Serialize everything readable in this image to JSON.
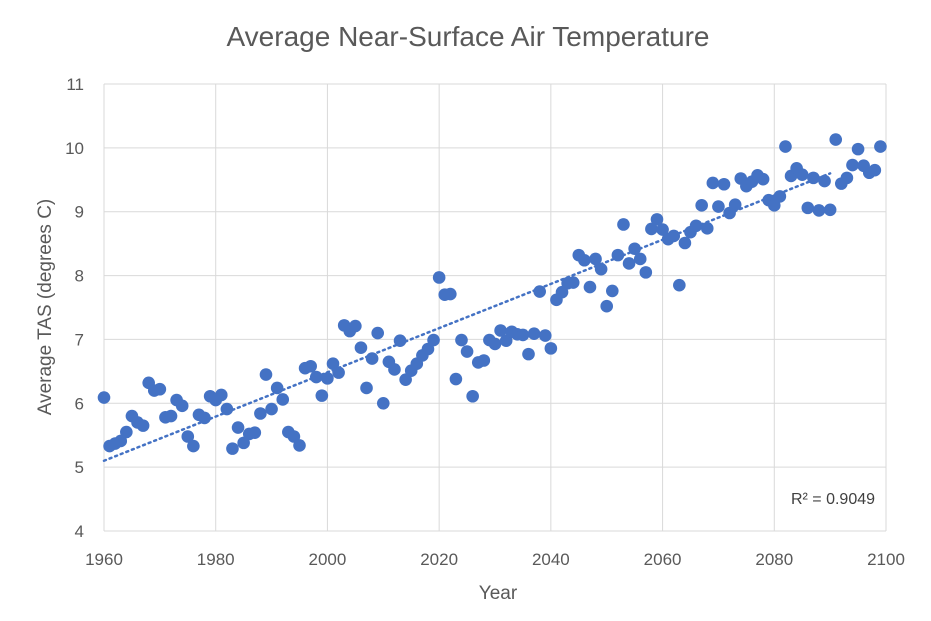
{
  "chart_data": {
    "type": "scatter",
    "title": "Average Near-Surface Air Temperature",
    "xlabel": "Year",
    "ylabel": "Average TAS (degrees C)",
    "xlim": [
      1960,
      2100
    ],
    "ylim": [
      4,
      11
    ],
    "x_ticks": [
      "1960",
      "1980",
      "2000",
      "2020",
      "2040",
      "2060",
      "2080",
      "2100"
    ],
    "y_ticks": [
      "4",
      "5",
      "6",
      "7",
      "8",
      "9",
      "10",
      "11"
    ],
    "grid": true,
    "legend": "none",
    "marker_color": "#4472C4",
    "trendline": {
      "type": "linear",
      "style": "dotted",
      "color": "#4472C4",
      "x_range": [
        1960,
        2090
      ],
      "y_range": [
        5.1,
        9.6
      ],
      "r2_label": "R² = 0.9049"
    },
    "points": [
      [
        1960,
        6.09
      ],
      [
        1961,
        5.33
      ],
      [
        1962,
        5.37
      ],
      [
        1963,
        5.41
      ],
      [
        1964,
        5.55
      ],
      [
        1965,
        5.8
      ],
      [
        1966,
        5.7
      ],
      [
        1967,
        5.65
      ],
      [
        1968,
        6.32
      ],
      [
        1969,
        6.2
      ],
      [
        1970,
        6.22
      ],
      [
        1971,
        5.78
      ],
      [
        1972,
        5.8
      ],
      [
        1973,
        6.05
      ],
      [
        1974,
        5.96
      ],
      [
        1975,
        5.48
      ],
      [
        1976,
        5.33
      ],
      [
        1977,
        5.82
      ],
      [
        1978,
        5.77
      ],
      [
        1979,
        6.11
      ],
      [
        1980,
        6.05
      ],
      [
        1981,
        6.13
      ],
      [
        1982,
        5.91
      ],
      [
        1983,
        5.29
      ],
      [
        1984,
        5.62
      ],
      [
        1985,
        5.38
      ],
      [
        1986,
        5.52
      ],
      [
        1987,
        5.54
      ],
      [
        1988,
        5.84
      ],
      [
        1989,
        6.45
      ],
      [
        1990,
        5.91
      ],
      [
        1991,
        6.24
      ],
      [
        1992,
        6.06
      ],
      [
        1993,
        5.55
      ],
      [
        1994,
        5.48
      ],
      [
        1995,
        5.34
      ],
      [
        1996,
        6.55
      ],
      [
        1997,
        6.58
      ],
      [
        1998,
        6.41
      ],
      [
        1999,
        6.12
      ],
      [
        2000,
        6.39
      ],
      [
        2001,
        6.62
      ],
      [
        2002,
        6.48
      ],
      [
        2003,
        7.22
      ],
      [
        2004,
        7.13
      ],
      [
        2005,
        7.21
      ],
      [
        2006,
        6.87
      ],
      [
        2007,
        6.24
      ],
      [
        2008,
        6.7
      ],
      [
        2009,
        7.1
      ],
      [
        2010,
        6.0
      ],
      [
        2011,
        6.65
      ],
      [
        2012,
        6.53
      ],
      [
        2013,
        6.98
      ],
      [
        2014,
        6.37
      ],
      [
        2015,
        6.51
      ],
      [
        2016,
        6.62
      ],
      [
        2017,
        6.75
      ],
      [
        2018,
        6.85
      ],
      [
        2019,
        6.99
      ],
      [
        2020,
        7.97
      ],
      [
        2021,
        7.7
      ],
      [
        2022,
        7.71
      ],
      [
        2023,
        6.38
      ],
      [
        2024,
        6.99
      ],
      [
        2025,
        6.81
      ],
      [
        2026,
        6.11
      ],
      [
        2027,
        6.64
      ],
      [
        2028,
        6.67
      ],
      [
        2029,
        6.99
      ],
      [
        2030,
        6.93
      ],
      [
        2031,
        7.14
      ],
      [
        2032,
        6.98
      ],
      [
        2033,
        7.12
      ],
      [
        2034,
        7.08
      ],
      [
        2035,
        7.07
      ],
      [
        2036,
        6.77
      ],
      [
        2037,
        7.09
      ],
      [
        2038,
        7.75
      ],
      [
        2039,
        7.06
      ],
      [
        2040,
        6.86
      ],
      [
        2041,
        7.62
      ],
      [
        2042,
        7.74
      ],
      [
        2043,
        7.88
      ],
      [
        2044,
        7.89
      ],
      [
        2045,
        8.32
      ],
      [
        2046,
        8.24
      ],
      [
        2047,
        7.82
      ],
      [
        2048,
        8.26
      ],
      [
        2049,
        8.1
      ],
      [
        2050,
        7.52
      ],
      [
        2051,
        7.76
      ],
      [
        2052,
        8.32
      ],
      [
        2053,
        8.8
      ],
      [
        2054,
        8.19
      ],
      [
        2055,
        8.42
      ],
      [
        2056,
        8.26
      ],
      [
        2057,
        8.05
      ],
      [
        2058,
        8.73
      ],
      [
        2059,
        8.88
      ],
      [
        2060,
        8.72
      ],
      [
        2061,
        8.57
      ],
      [
        2062,
        8.62
      ],
      [
        2063,
        7.85
      ],
      [
        2064,
        8.51
      ],
      [
        2065,
        8.68
      ],
      [
        2066,
        8.78
      ],
      [
        2067,
        9.1
      ],
      [
        2068,
        8.74
      ],
      [
        2069,
        9.45
      ],
      [
        2070,
        9.08
      ],
      [
        2071,
        9.43
      ],
      [
        2072,
        8.98
      ],
      [
        2073,
        9.11
      ],
      [
        2074,
        9.52
      ],
      [
        2075,
        9.4
      ],
      [
        2076,
        9.47
      ],
      [
        2077,
        9.57
      ],
      [
        2078,
        9.51
      ],
      [
        2079,
        9.18
      ],
      [
        2080,
        9.1
      ],
      [
        2081,
        9.24
      ],
      [
        2082,
        10.02
      ],
      [
        2083,
        9.56
      ],
      [
        2084,
        9.68
      ],
      [
        2085,
        9.58
      ],
      [
        2086,
        9.06
      ],
      [
        2087,
        9.53
      ],
      [
        2088,
        9.02
      ],
      [
        2089,
        9.48
      ],
      [
        2090,
        9.03
      ],
      [
        2091,
        10.13
      ],
      [
        2092,
        9.44
      ],
      [
        2093,
        9.53
      ],
      [
        2094,
        9.73
      ],
      [
        2095,
        9.98
      ],
      [
        2096,
        9.72
      ],
      [
        2097,
        9.61
      ],
      [
        2098,
        9.65
      ],
      [
        2099,
        10.02
      ]
    ]
  }
}
